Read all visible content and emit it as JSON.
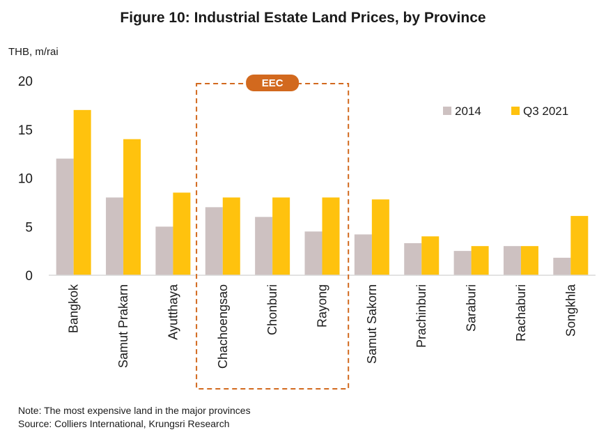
{
  "chart_data": {
    "type": "bar",
    "title": "Figure 10: Industrial Estate Land Prices, by Province",
    "ylabel": "THB, m/rai",
    "ylim": [
      0,
      20
    ],
    "yticks": [
      0,
      5,
      10,
      15,
      20
    ],
    "categories": [
      "Bangkok",
      "Samut Prakarn",
      "Ayutthaya",
      "Chachoengsao",
      "Chonburi",
      "Rayong",
      "Samut Sakorn",
      "Prachinburi",
      "Saraburi",
      "Rachaburi",
      "Songkhla"
    ],
    "series": [
      {
        "name": "2014",
        "color": "#cdc1c1",
        "values": [
          12,
          8,
          5,
          7,
          6,
          4.5,
          4.2,
          3.3,
          2.5,
          3,
          1.8
        ]
      },
      {
        "name": "Q3 2021",
        "color": "#ffc20e",
        "values": [
          17,
          14,
          8.5,
          8,
          8,
          8,
          7.8,
          4,
          3,
          3,
          6.1
        ]
      }
    ],
    "legend_position": "top-right",
    "grid": false,
    "annotation": {
      "label": "EEC",
      "color": "#d2691e",
      "categories": [
        "Chachoengsao",
        "Chonburi",
        "Rayong"
      ]
    }
  },
  "notes": {
    "note": "Note: The most expensive land in the major provinces",
    "source": "Source: Colliers International, Krungsri Research"
  }
}
